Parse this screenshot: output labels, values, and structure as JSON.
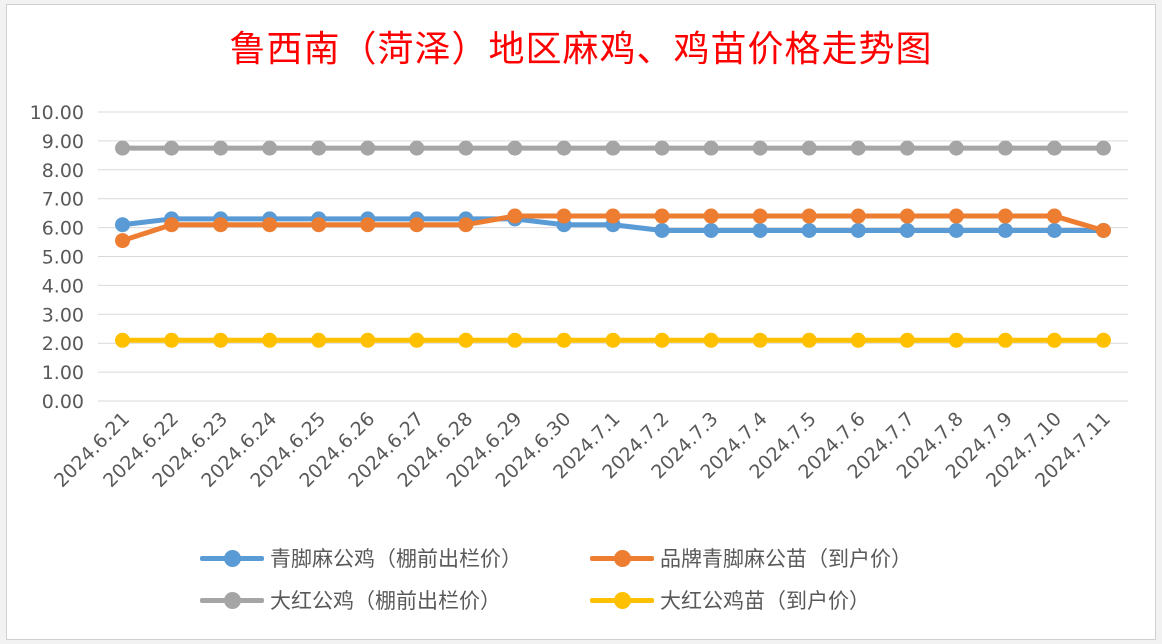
{
  "title": "鲁西南（菏泽）地区麻鸡、鸡苗价格走势图",
  "chart_data": {
    "type": "line",
    "title": "鲁西南（菏泽）地区麻鸡、鸡苗价格走势图",
    "xlabel": "",
    "ylabel": "",
    "ylim": [
      0,
      10
    ],
    "yticks": [
      "0.00",
      "1.00",
      "2.00",
      "3.00",
      "4.00",
      "5.00",
      "6.00",
      "7.00",
      "8.00",
      "9.00",
      "10.00"
    ],
    "grid": true,
    "legend_position": "bottom",
    "categories": [
      "2024.6.21",
      "2024.6.22",
      "2024.6.23",
      "2024.6.24",
      "2024.6.25",
      "2024.6.26",
      "2024.6.27",
      "2024.6.28",
      "2024.6.29",
      "2024.6.30",
      "2024.7.1",
      "2024.7.2",
      "2024.7.3",
      "2024.7.4",
      "2024.7.5",
      "2024.7.6",
      "2024.7.7",
      "2024.7.8",
      "2024.7.9",
      "2024.7.10",
      "2024.7.11"
    ],
    "series": [
      {
        "name": "青脚麻公鸡（棚前出栏价）",
        "color": "#5b9bd5",
        "values": [
          6.1,
          6.3,
          6.3,
          6.3,
          6.3,
          6.3,
          6.3,
          6.3,
          6.3,
          6.1,
          6.1,
          5.9,
          5.9,
          5.9,
          5.9,
          5.9,
          5.9,
          5.9,
          5.9,
          5.9,
          5.9
        ]
      },
      {
        "name": "品牌青脚麻公苗（到户价）",
        "color": "#ed7d31",
        "values": [
          5.55,
          6.1,
          6.1,
          6.1,
          6.1,
          6.1,
          6.1,
          6.1,
          6.4,
          6.4,
          6.4,
          6.4,
          6.4,
          6.4,
          6.4,
          6.4,
          6.4,
          6.4,
          6.4,
          6.4,
          5.9
        ]
      },
      {
        "name": "大红公鸡（棚前出栏价）",
        "color": "#a5a5a5",
        "values": [
          8.75,
          8.75,
          8.75,
          8.75,
          8.75,
          8.75,
          8.75,
          8.75,
          8.75,
          8.75,
          8.75,
          8.75,
          8.75,
          8.75,
          8.75,
          8.75,
          8.75,
          8.75,
          8.75,
          8.75,
          8.75
        ]
      },
      {
        "name": "大红公鸡苗（到户价）",
        "color": "#ffc000",
        "values": [
          2.1,
          2.1,
          2.1,
          2.1,
          2.1,
          2.1,
          2.1,
          2.1,
          2.1,
          2.1,
          2.1,
          2.1,
          2.1,
          2.1,
          2.1,
          2.1,
          2.1,
          2.1,
          2.1,
          2.1,
          2.1
        ]
      }
    ]
  },
  "legend": [
    {
      "label": "青脚麻公鸡（棚前出栏价）",
      "color": "#5b9bd5"
    },
    {
      "label": "品牌青脚麻公苗（到户价）",
      "color": "#ed7d31"
    },
    {
      "label": "大红公鸡（棚前出栏价）",
      "color": "#a5a5a5"
    },
    {
      "label": "大红公鸡苗（到户价）",
      "color": "#ffc000"
    }
  ]
}
